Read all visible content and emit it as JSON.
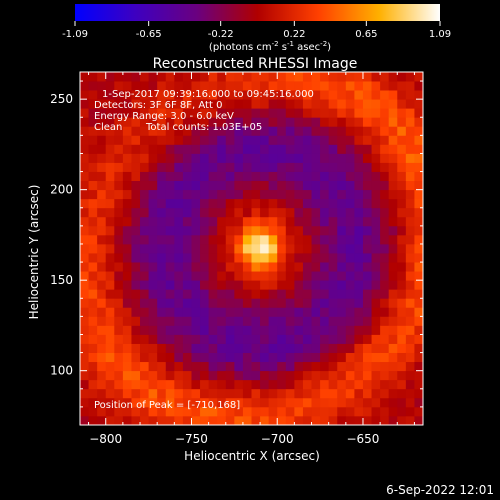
{
  "colorbar": {
    "ticks": [
      "-1.09",
      "-0.65",
      "-0.22",
      "0.22",
      "0.65",
      "1.09"
    ],
    "unit_main": "(photons cm",
    "unit_sup1": "-2",
    "unit_s": " s",
    "unit_sup2": "-1",
    "unit_asec": " asec",
    "unit_sup3": "-2",
    "unit_close": ")",
    "stops": [
      "#0000ff",
      "#3e00c0",
      "#6a0080",
      "#b00000",
      "#ff4000",
      "#ffb000",
      "#ffffff"
    ]
  },
  "chart_data": {
    "type": "heatmap",
    "title": "Reconstructed RHESSI Image",
    "xlabel": "Heliocentric X (arcsec)",
    "ylabel": "Heliocentric Y (arcsec)",
    "xlim": [
      -815,
      -615
    ],
    "ylim": [
      70,
      265
    ],
    "x_ticks": [
      -800,
      -750,
      -700,
      -650
    ],
    "y_ticks": [
      100,
      150,
      200,
      250
    ],
    "value_range": [
      -1.09,
      1.09
    ],
    "peak": [
      -710,
      168
    ],
    "annotations": {
      "time": "1-Sep-2017 09:39:16.000 to 09:45:16.000",
      "detectors": "Detectors: 3F 6F 8F, Att 0",
      "energy": "Energy Range: 3.0 - 6.0 keV",
      "clean": "Clean",
      "counts": "Total counts: 1.03E+05",
      "peak_label": "Position of Peak = [-710,168]"
    }
  },
  "footer": {
    "date": "6-Sep-2022 12:01"
  }
}
